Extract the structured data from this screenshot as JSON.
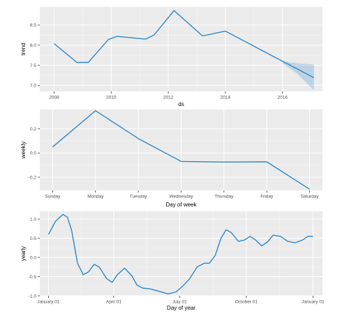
{
  "chart_data": [
    {
      "type": "line",
      "xlabel": "ds",
      "ylabel": "trend",
      "xlim": [
        2007.5,
        2017.4
      ],
      "ylim": [
        6.85,
        8.95
      ],
      "x_ticks": [
        2008,
        2010,
        2012,
        2014,
        2016
      ],
      "x_tick_labels": [
        "2008",
        "2010",
        "2012",
        "2014",
        "2016"
      ],
      "y_ticks": [
        7.0,
        7.5,
        8.0,
        8.5
      ],
      "y_tick_labels": [
        "7.0",
        "7.5",
        "8.0",
        "8.5"
      ],
      "grid": true,
      "series": [
        {
          "x": [
            2008.0,
            2008.8,
            2009.2,
            2009.9,
            2010.2,
            2011.2,
            2011.5,
            2012.2,
            2013.2,
            2014.0,
            2016.0,
            2017.1
          ],
          "values": [
            8.04,
            7.57,
            7.57,
            8.14,
            8.22,
            8.15,
            8.25,
            8.86,
            8.23,
            8.35,
            7.6,
            7.19
          ]
        }
      ],
      "uncertainty": {
        "x": [
          2016.0,
          2016.5,
          2017.1
        ],
        "lower": [
          7.55,
          7.3,
          6.88
        ],
        "upper": [
          7.6,
          7.55,
          7.52
        ]
      }
    },
    {
      "type": "line",
      "xlabel": "Day of week",
      "ylabel": "weekly",
      "categories": [
        "Sunday",
        "Monday",
        "Tuesday",
        "Wednesday",
        "Thursday",
        "Friday",
        "Saturday"
      ],
      "ylim": [
        -0.31,
        0.36
      ],
      "y_ticks": [
        -0.2,
        0.0,
        0.2
      ],
      "y_tick_labels": [
        "-0.2",
        "0.0",
        "0.2"
      ],
      "grid": true,
      "series": [
        {
          "values": [
            0.05,
            0.35,
            0.12,
            -0.07,
            -0.075,
            -0.073,
            -0.3
          ]
        }
      ]
    },
    {
      "type": "line",
      "xlabel": "Day of year",
      "ylabel": "yearly",
      "xlim": [
        -12,
        378
      ],
      "ylim": [
        -1.0,
        1.2
      ],
      "x_ticks": [
        0,
        90,
        181,
        273,
        365
      ],
      "x_tick_labels": [
        "January 01",
        "April 01",
        "July 01",
        "October 01",
        "January 01"
      ],
      "y_ticks": [
        -1.0,
        -0.5,
        0.0,
        0.5,
        1.0
      ],
      "y_tick_labels": [
        "-1.0",
        "-0.5",
        "0.0",
        "0.5",
        "1.0"
      ],
      "grid": true,
      "series": [
        {
          "x": [
            0,
            10,
            20,
            26,
            32,
            40,
            48,
            55,
            63,
            70,
            80,
            88,
            95,
            105,
            115,
            122,
            130,
            140,
            152,
            165,
            176,
            185,
            195,
            205,
            215,
            222,
            230,
            238,
            245,
            252,
            262,
            270,
            278,
            286,
            294,
            302,
            310,
            320,
            330,
            340,
            350,
            358,
            365
          ],
          "values": [
            0.6,
            0.95,
            1.12,
            1.05,
            0.7,
            -0.15,
            -0.45,
            -0.38,
            -0.18,
            -0.25,
            -0.55,
            -0.65,
            -0.45,
            -0.28,
            -0.48,
            -0.72,
            -0.8,
            -0.82,
            -0.88,
            -0.95,
            -0.9,
            -0.75,
            -0.55,
            -0.25,
            -0.15,
            -0.15,
            0.05,
            0.5,
            0.72,
            0.65,
            0.42,
            0.45,
            0.55,
            0.45,
            0.3,
            0.4,
            0.58,
            0.55,
            0.42,
            0.38,
            0.45,
            0.55,
            0.55
          ]
        }
      ]
    }
  ]
}
